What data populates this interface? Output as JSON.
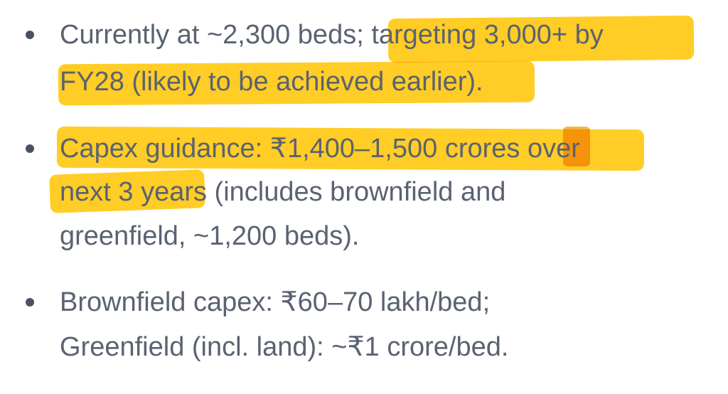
{
  "bullets": [
    {
      "lines": [
        "Currently at ~2,300 beds; targeting 3,000+ by",
        "FY28 (likely to be achieved earlier)."
      ]
    },
    {
      "lines": [
        "Capex guidance: ₹1,400–1,500 crores over",
        "next 3 years (includes brownfield and",
        "greenfield, ~1,200 beds)."
      ]
    },
    {
      "lines": [
        "Brownfield capex: ₹60–70 lakh/bed;",
        "Greenfield (incl. land): ~₹1 crore/bed."
      ]
    }
  ],
  "highlight_color": "#ffc400"
}
